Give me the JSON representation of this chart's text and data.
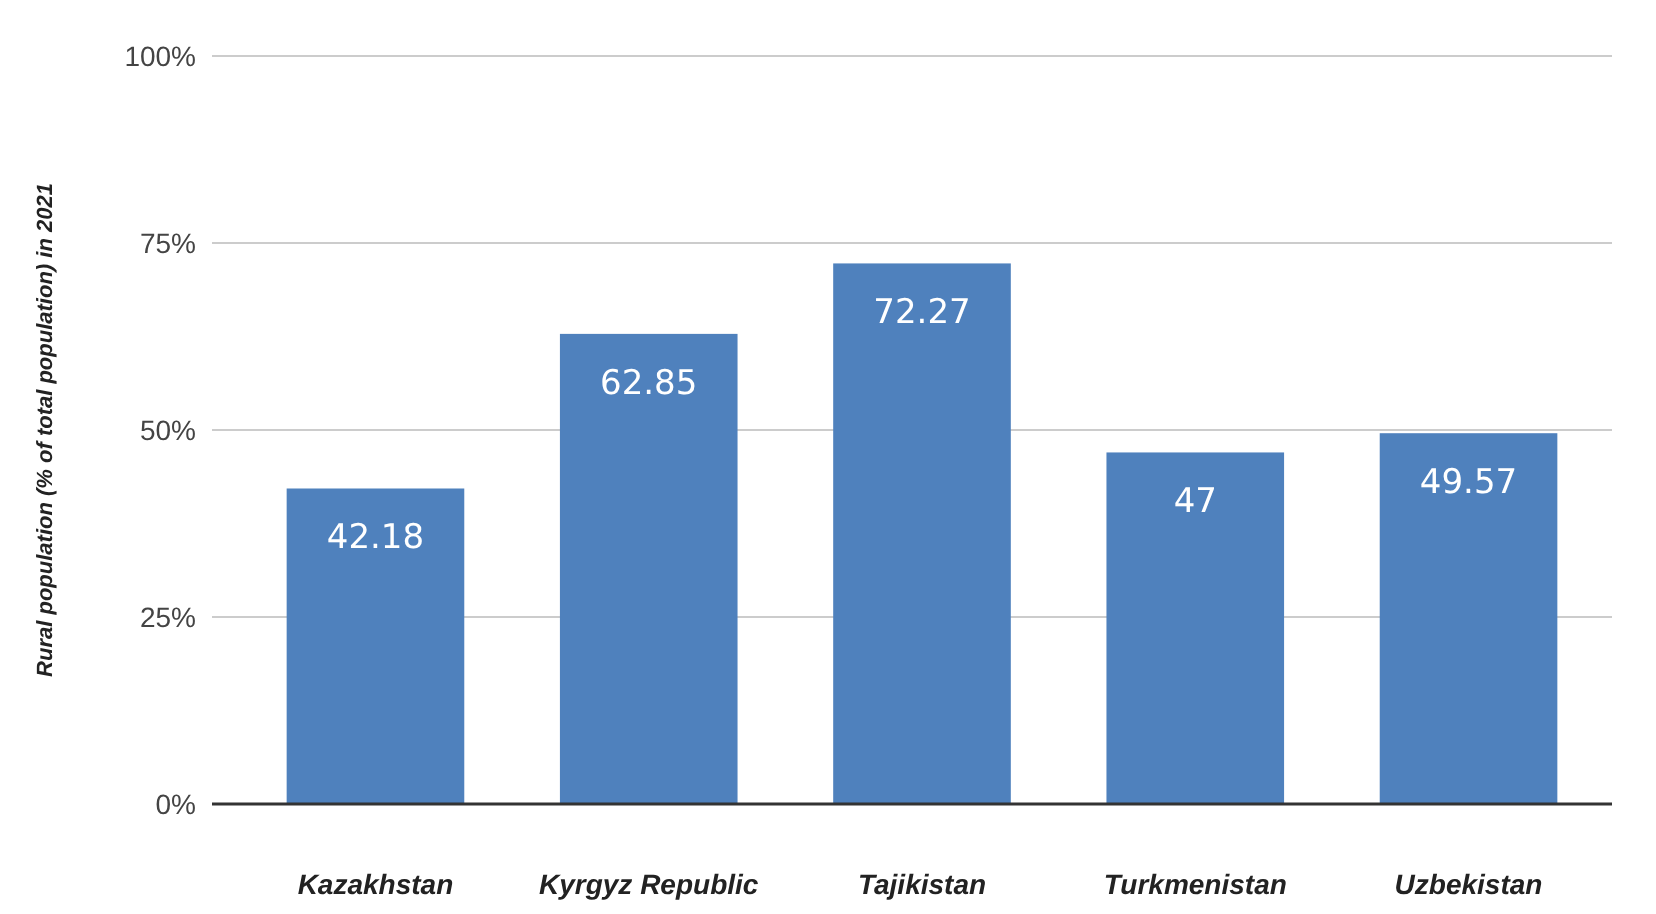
{
  "chart_data": {
    "type": "bar",
    "ylabel": "Rural population (% of total population) in 2021",
    "categories": [
      "Kazakhstan",
      "Kyrgyz Republic",
      "Tajikistan",
      "Turkmenistan",
      "Uzbekistan"
    ],
    "values": [
      42.18,
      62.85,
      72.27,
      47,
      49.57
    ],
    "color": "#4f81bd",
    "ylim": [
      0,
      100
    ],
    "yticks": [
      {
        "value": 0,
        "label": "0%"
      },
      {
        "value": 25,
        "label": "25%"
      },
      {
        "value": 50,
        "label": "50%"
      },
      {
        "value": 75,
        "label": "75%"
      },
      {
        "value": 100,
        "label": "100%"
      }
    ],
    "grid": "y",
    "data_labels": true
  }
}
